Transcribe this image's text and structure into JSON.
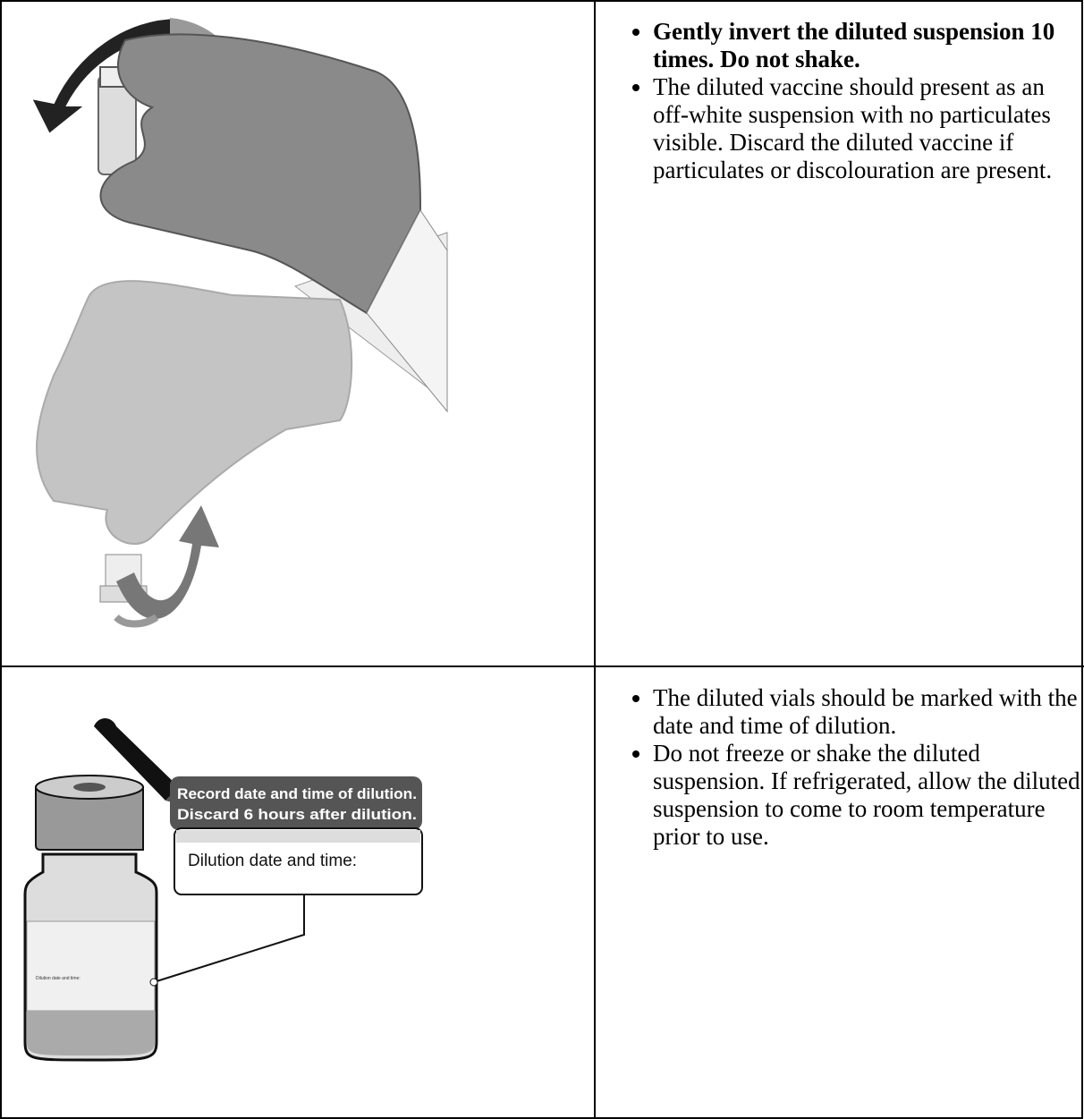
{
  "rows": [
    {
      "bullets": [
        {
          "text": "Gently invert the diluted suspension 10 times. Do not shake.",
          "bold": true
        },
        {
          "text": "The diluted vaccine should present as an off-white suspension with no particulates visible. Discard the diluted vaccine if particulates or discolouration are present.",
          "bold": false
        }
      ]
    },
    {
      "illustration": {
        "header_lines": [
          "Record date and time of dilution.",
          "Discard 6 hours after dilution."
        ],
        "box_label": "Dilution date and time:",
        "vial_label": "Dilution date and time:"
      },
      "bullets": [
        {
          "text": "The diluted vials should be marked with the date and time of dilution.",
          "bold": false
        },
        {
          "text": "Do not freeze or shake the diluted suspension. If refrigerated, allow the diluted suspension to come to room temperature prior to use.",
          "bold": false
        }
      ]
    }
  ]
}
